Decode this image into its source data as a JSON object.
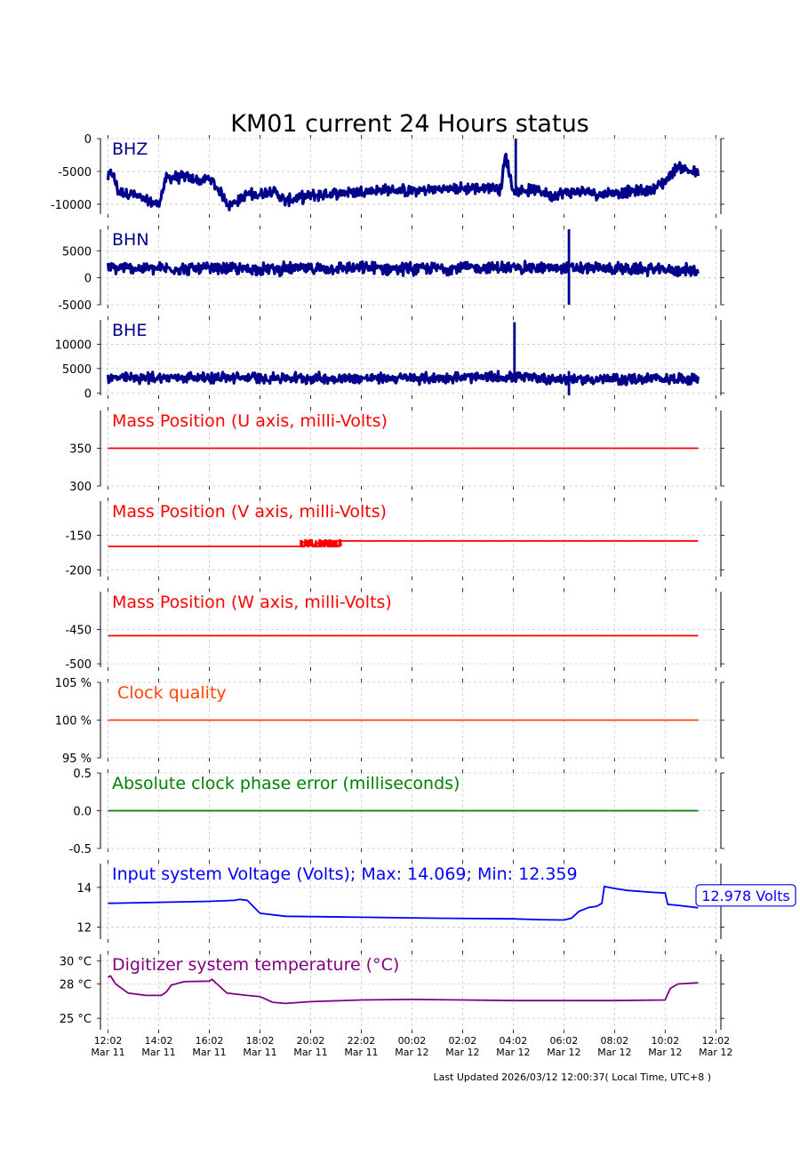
{
  "title": "KM01 current 24 Hours status",
  "footer": "Last Updated 2026/03/12 12:00:37( Local Time, UTC+8 )",
  "x_ticks": [
    {
      "time": "12:02",
      "date": "Mar 11"
    },
    {
      "time": "14:02",
      "date": "Mar 11"
    },
    {
      "time": "16:02",
      "date": "Mar 11"
    },
    {
      "time": "18:02",
      "date": "Mar 11"
    },
    {
      "time": "20:02",
      "date": "Mar 11"
    },
    {
      "time": "22:02",
      "date": "Mar 11"
    },
    {
      "time": "00:02",
      "date": "Mar 12"
    },
    {
      "time": "02:02",
      "date": "Mar 12"
    },
    {
      "time": "04:02",
      "date": "Mar 12"
    },
    {
      "time": "06:02",
      "date": "Mar 12"
    },
    {
      "time": "08:02",
      "date": "Mar 12"
    },
    {
      "time": "10:02",
      "date": "Mar 12"
    },
    {
      "time": "12:02",
      "date": "Mar 12"
    }
  ],
  "colors": {
    "seismic": "#00008b",
    "mass": "#ff0000",
    "clock": "#ff4500",
    "phase": "#008000",
    "voltage": "#0000ff",
    "temperature": "#800080",
    "grid": "#c8c8c8"
  },
  "chart_data": [
    {
      "id": "bhz",
      "type": "line",
      "label": "BHZ",
      "x_range_hours": [
        -0.3,
        24.2
      ],
      "ylim": [
        -11500,
        0
      ],
      "yticks": [
        0,
        -5000,
        -10000
      ],
      "ytick_labels": [
        "0",
        "-5000",
        "-10000"
      ],
      "band_halfwidth": 700,
      "series": [
        {
          "x": [
            0,
            0.15,
            0.4,
            1,
            1.5,
            2,
            2.3,
            3,
            3.7,
            4,
            4.5,
            4.8,
            5.5,
            6,
            6.5,
            7,
            8,
            9,
            10,
            11,
            12,
            13,
            14,
            15,
            15.3,
            15.5,
            15.7,
            16,
            17,
            17.5,
            18,
            19,
            19.5,
            20,
            21,
            21.5,
            22,
            22.5,
            23,
            23.3
          ],
          "y": [
            -6000,
            -5000,
            -8000,
            -8500,
            -9500,
            -10000,
            -6000,
            -5800,
            -6500,
            -6000,
            -8500,
            -10200,
            -8500,
            -8500,
            -7800,
            -9500,
            -8700,
            -8300,
            -8000,
            -7800,
            -8000,
            -7700,
            -7600,
            -7500,
            -7300,
            -7800,
            -2500,
            -8000,
            -7800,
            -8700,
            -8200,
            -8100,
            -8500,
            -8200,
            -8000,
            -7800,
            -6500,
            -4200,
            -5000,
            -5300
          ]
        }
      ],
      "spikes": [
        {
          "x": 16.1,
          "y1": -7500,
          "y2": 0
        }
      ]
    },
    {
      "id": "bhn",
      "type": "line",
      "label": "BHN",
      "x_range_hours": [
        -0.3,
        24.2
      ],
      "ylim": [
        -5000,
        9000
      ],
      "yticks": [
        5000,
        0,
        -5000
      ],
      "ytick_labels": [
        "5000",
        "0",
        "-5000"
      ],
      "band_halfwidth": 900,
      "series": [
        {
          "x": [
            0,
            3,
            6,
            9,
            12,
            15,
            18,
            20,
            21,
            22,
            23,
            23.3
          ],
          "y": [
            1800,
            1700,
            1600,
            1800,
            1700,
            1900,
            1800,
            1700,
            1600,
            1500,
            1400,
            1300
          ]
        }
      ],
      "spikes": [
        {
          "x": 18.2,
          "y1": -5000,
          "y2": 9000
        }
      ]
    },
    {
      "id": "bhe",
      "type": "line",
      "label": "BHE",
      "x_range_hours": [
        -0.3,
        24.2
      ],
      "ylim": [
        -500,
        15000
      ],
      "yticks": [
        10000,
        5000,
        0
      ],
      "ytick_labels": [
        "10000",
        "5000",
        "0"
      ],
      "band_halfwidth": 900,
      "series": [
        {
          "x": [
            0,
            3,
            6,
            9,
            12,
            15,
            16,
            18,
            20,
            22,
            23.3
          ],
          "y": [
            3000,
            3200,
            3100,
            3000,
            3000,
            3200,
            3300,
            2800,
            2800,
            2900,
            3000
          ]
        }
      ],
      "spikes": [
        {
          "x": 16.05,
          "y1": 3000,
          "y2": 14500
        },
        {
          "x": 18.2,
          "y1": -500,
          "y2": 4500
        }
      ]
    },
    {
      "id": "mass_u",
      "type": "line",
      "label": "Mass Position (U axis, milli-Volts)",
      "x_range_hours": [
        -0.3,
        24.2
      ],
      "ylim": [
        300,
        400
      ],
      "yticks": [
        350,
        300
      ],
      "ytick_labels": [
        "350",
        "300"
      ],
      "series": [
        {
          "x": [
            0,
            23.3
          ],
          "y": [
            350,
            350
          ]
        }
      ]
    },
    {
      "id": "mass_v",
      "type": "line",
      "label": "Mass Position (V axis, milli-Volts)",
      "x_range_hours": [
        -0.3,
        24.2
      ],
      "ylim": [
        -210,
        -100
      ],
      "yticks": [
        -150,
        -200
      ],
      "ytick_labels": [
        "-150",
        "-200"
      ],
      "series": [
        {
          "x": [
            0,
            7.6,
            7.6,
            8,
            8.5,
            9.2,
            9.2,
            23.3
          ],
          "y": [
            -166,
            -166,
            -158,
            -165,
            -158,
            -158,
            -158,
            -158
          ]
        }
      ],
      "noise_segment": {
        "x1": 7.6,
        "x2": 9.2,
        "y1": -166,
        "y2": -157
      }
    },
    {
      "id": "mass_w",
      "type": "line",
      "label": "Mass Position (W axis, milli-Volts)",
      "x_range_hours": [
        -0.3,
        24.2
      ],
      "ylim": [
        -505,
        -395
      ],
      "yticks": [
        -450,
        -500
      ],
      "ytick_labels": [
        "-450",
        "-500"
      ],
      "series": [
        {
          "x": [
            0,
            23.3
          ],
          "y": [
            -459,
            -459
          ]
        }
      ]
    },
    {
      "id": "clock",
      "type": "line",
      "label": "Clock quality",
      "x_range_hours": [
        -0.3,
        24.2
      ],
      "ylim": [
        95,
        105
      ],
      "yticks": [
        105,
        100,
        95
      ],
      "ytick_labels": [
        "105 %",
        "100 %",
        "95 %"
      ],
      "series": [
        {
          "x": [
            0,
            23.3
          ],
          "y": [
            100,
            100
          ]
        }
      ]
    },
    {
      "id": "phase",
      "type": "line",
      "label": "Absolute clock phase error (milliseconds)",
      "x_range_hours": [
        -0.3,
        24.2
      ],
      "ylim": [
        -0.5,
        0.5
      ],
      "yticks": [
        0.5,
        0.0,
        -0.5
      ],
      "ytick_labels": [
        "0.5",
        "0.0",
        "-0.5"
      ],
      "series": [
        {
          "x": [
            0,
            23.3
          ],
          "y": [
            0,
            0
          ]
        }
      ]
    },
    {
      "id": "voltage",
      "type": "line",
      "label": "Input system Voltage (Volts);    Max: 14.069; Min: 12.359",
      "annotation": "12.978 Volts",
      "x_range_hours": [
        -0.3,
        24.2
      ],
      "ylim": [
        11.4,
        15.2
      ],
      "yticks": [
        14,
        12
      ],
      "ytick_labels": [
        "14",
        "12"
      ],
      "series": [
        {
          "x": [
            0,
            2,
            4,
            5,
            5.2,
            5.5,
            6,
            7,
            10,
            13,
            16,
            17,
            18,
            18.3,
            18.6,
            19,
            19.3,
            19.5,
            19.6,
            20,
            20.5,
            21.5,
            22,
            22.1,
            22.5,
            23.3
          ],
          "y": [
            13.2,
            13.25,
            13.3,
            13.35,
            13.4,
            13.35,
            12.7,
            12.55,
            12.5,
            12.45,
            12.42,
            12.38,
            12.36,
            12.45,
            12.8,
            13.0,
            13.05,
            13.2,
            14.05,
            13.95,
            13.85,
            13.75,
            13.72,
            13.15,
            13.1,
            12.98
          ]
        }
      ]
    },
    {
      "id": "temperature",
      "type": "line",
      "label": "Digitizer system temperature ($^\\circ$C)",
      "x_range_hours": [
        -0.3,
        24.2
      ],
      "ylim": [
        24.0,
        30.6
      ],
      "yticks": [
        30,
        28,
        25
      ],
      "ytick_labels": [
        "30 $^\\circ$C",
        "28 $^\\circ$C",
        "25 $^\\circ$C"
      ],
      "series": [
        {
          "x": [
            0,
            0.1,
            0.3,
            0.8,
            1.5,
            2.1,
            2.3,
            2.5,
            3,
            4,
            4.1,
            4.3,
            4.7,
            5.5,
            6,
            6.2,
            6.5,
            7,
            8,
            10,
            12,
            14,
            16,
            18,
            20,
            22,
            22.2,
            22.5,
            23.3
          ],
          "y": [
            28.6,
            28.7,
            28.0,
            27.2,
            27.0,
            27.0,
            27.3,
            27.9,
            28.2,
            28.25,
            28.4,
            28.0,
            27.2,
            27.0,
            26.9,
            26.7,
            26.4,
            26.3,
            26.45,
            26.6,
            26.65,
            26.6,
            26.55,
            26.55,
            26.55,
            26.6,
            27.6,
            28.0,
            28.1
          ]
        }
      ]
    }
  ]
}
